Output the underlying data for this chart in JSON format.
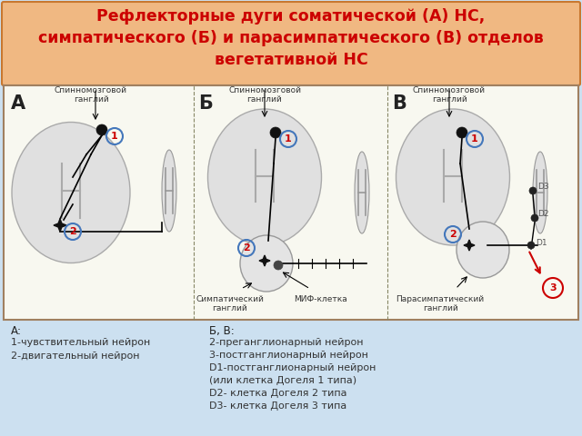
{
  "title_line1": "Рефлекторные дуги соматической (А) НС,",
  "title_line2": "симпатического (Б) и парасимпатического (В) отделов",
  "title_line3": "вегетативной НС",
  "title_color": "#cc0000",
  "title_fontsize": 12.5,
  "title_bg_top": "#f0a060",
  "title_bg_bot": "#f5d0a0",
  "main_bg_color": "#cce0f0",
  "diagram_border_color": "#a08060",
  "legend_left_title": "А:",
  "legend_left_lines": [
    "1-чувствительный нейрон",
    "2-двигательный нейрон"
  ],
  "legend_right_title": "Б, В:",
  "legend_right_lines": [
    "2-преганглионарный нейрон",
    "3-постганглионарный нейрон",
    "D1-постганглионарный нейрон",
    "(или клетка Догеля 1 типа)",
    "D2- клетка Догеля 2 типа",
    "D3- клетка Догеля 3 типа"
  ],
  "legend_fontsize": 8.5,
  "section_labels": [
    "А",
    "Б",
    "В"
  ],
  "circle_outline": "#4477bb",
  "num_color": "#cc0000",
  "node_dark": "#111111",
  "ganglion_gray": "#d8d8d8",
  "ganglion_light": "#ececec"
}
